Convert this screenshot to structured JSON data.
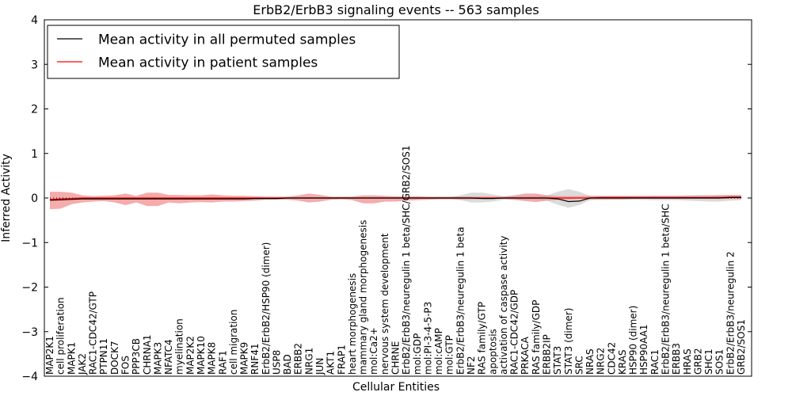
{
  "chart_data": {
    "type": "line",
    "title": "ErbB2/ErbB3 signaling events -- 563 samples",
    "xlabel": "Cellular Entities",
    "ylabel": "Inferred Activity",
    "ylim": [
      -4,
      4
    ],
    "yticks": [
      -4,
      -3,
      -2,
      -1,
      0,
      1,
      2,
      3,
      4
    ],
    "ytick_labels": [
      "−4",
      "−3",
      "−2",
      "−1",
      "0",
      "1",
      "2",
      "3",
      "4"
    ],
    "legend": {
      "placement": "top-left",
      "entries": [
        {
          "label": "Mean activity in all permuted samples",
          "color": "#000000"
        },
        {
          "label": "Mean activity in patient samples",
          "color": "#ff0000"
        }
      ]
    },
    "colors": {
      "permuted": "#000000",
      "patient": "#ff0000",
      "patient_band": "#f08080",
      "permuted_band": "#c8c8c8"
    },
    "categories": [
      "MAP2K1",
      "cell proliferation",
      "MAPK1",
      "JAK2",
      "RAC1-CDC42/GTP",
      "PTPN11",
      "DOCK7",
      "FOS",
      "PPP3CB",
      "CHRNA1",
      "MAPK3",
      "NFATC4",
      "myelination",
      "MAP2K2",
      "MAPK10",
      "MAPK8",
      "RAF1",
      "cell migration",
      "MAPK9",
      "RNF41",
      "ErbB2/ErbB2/HSP90 (dimer)",
      "USP8",
      "BAD",
      "ERBB2",
      "NRG1",
      "JUN",
      "AKT1",
      "FRAP1",
      "heart morphogenesis",
      "mammary gland morphogenesis",
      "mol:Ca2+",
      "nervous system development",
      "CHRNE",
      "ErbB2/ErbB3/neuregulin 1 beta/SHC/GRB2/SOS1",
      "mol:GDP",
      "mol:PI-3-4-5-P3",
      "mol:cAMP",
      "mol:GTP",
      "ErbB2/ErbB3/neuregulin 1 beta",
      "NF2",
      "RAS family/GTP",
      "apoptosis",
      "activation of caspase activity",
      "RAC1-CDC42/GDP",
      "PRKACA",
      "RAS family/GDP",
      "ERBB2IP",
      "STAT3",
      "STAT3 (dimer)",
      "SRC",
      "NRAS",
      "NRG2",
      "CDC42",
      "KRAS",
      "HSP90 (dimer)",
      "HSP90AA1",
      "RAC1",
      "ErbB2/ErbB3/neuregulin 1 beta/SHC",
      "ERBB3",
      "HRAS",
      "GRB2",
      "SHC1",
      "SOS1",
      "ErbB2/ErbB3/neuregulin 2",
      "GRB2/SOS1"
    ],
    "series": [
      {
        "name": "Mean activity in all permuted samples",
        "values": [
          -0.05,
          -0.04,
          -0.03,
          -0.02,
          -0.02,
          -0.02,
          -0.02,
          -0.02,
          -0.02,
          -0.02,
          -0.02,
          -0.02,
          -0.02,
          -0.02,
          -0.02,
          -0.02,
          -0.02,
          -0.02,
          -0.02,
          -0.01,
          -0.01,
          -0.01,
          0.0,
          0.0,
          0.0,
          0.0,
          0.0,
          0.0,
          0.0,
          0.0,
          0.0,
          0.0,
          0.0,
          0.0,
          0.0,
          0.0,
          0.0,
          0.0,
          0.0,
          0.0,
          -0.01,
          -0.01,
          0.0,
          0.0,
          0.0,
          0.0,
          0.0,
          -0.02,
          -0.08,
          -0.07,
          0.0,
          0.0,
          0.0,
          0.0,
          0.0,
          0.0,
          0.0,
          0.0,
          0.0,
          0.0,
          0.0,
          0.0,
          0.0,
          0.01,
          0.01
        ],
        "lower": [
          -0.07,
          -0.06,
          -0.05,
          -0.04,
          -0.04,
          -0.04,
          -0.04,
          -0.04,
          -0.04,
          -0.04,
          -0.04,
          -0.04,
          -0.04,
          -0.04,
          -0.04,
          -0.04,
          -0.04,
          -0.04,
          -0.04,
          -0.03,
          -0.03,
          -0.03,
          -0.02,
          -0.02,
          -0.02,
          -0.02,
          -0.02,
          -0.02,
          -0.02,
          -0.02,
          -0.02,
          -0.02,
          -0.02,
          -0.02,
          -0.02,
          -0.02,
          -0.02,
          -0.02,
          -0.05,
          -0.1,
          -0.1,
          -0.08,
          -0.04,
          -0.04,
          -0.04,
          -0.04,
          -0.06,
          -0.15,
          -0.22,
          -0.16,
          -0.05,
          -0.04,
          -0.04,
          -0.04,
          -0.04,
          -0.04,
          -0.05,
          -0.05,
          -0.05,
          -0.06,
          -0.07,
          -0.08,
          -0.08,
          -0.06,
          -0.05
        ],
        "upper": [
          -0.03,
          -0.02,
          -0.01,
          0.0,
          0.0,
          0.0,
          0.0,
          0.0,
          0.0,
          0.0,
          0.0,
          0.0,
          0.0,
          0.0,
          0.0,
          0.0,
          0.0,
          0.0,
          0.0,
          0.01,
          0.01,
          0.01,
          0.02,
          0.02,
          0.02,
          0.02,
          0.02,
          0.02,
          0.02,
          0.02,
          0.02,
          0.02,
          0.02,
          0.02,
          0.02,
          0.02,
          0.02,
          0.02,
          0.06,
          0.12,
          0.12,
          0.08,
          0.04,
          0.04,
          0.04,
          0.05,
          0.06,
          0.14,
          0.2,
          0.14,
          0.05,
          0.04,
          0.04,
          0.04,
          0.04,
          0.04,
          0.05,
          0.05,
          0.05,
          0.06,
          0.07,
          0.07,
          0.07,
          0.06,
          0.05
        ]
      },
      {
        "name": "Mean activity in patient samples",
        "values": [
          -0.03,
          -0.02,
          -0.01,
          0.0,
          0.0,
          0.0,
          0.0,
          0.0,
          0.0,
          0.0,
          0.0,
          0.0,
          0.0,
          0.0,
          0.0,
          0.0,
          0.0,
          0.0,
          0.0,
          0.0,
          0.0,
          0.0,
          0.0,
          0.0,
          0.0,
          0.0,
          0.0,
          0.0,
          0.0,
          0.0,
          0.0,
          0.0,
          0.0,
          0.0,
          0.0,
          0.0,
          0.0,
          0.0,
          0.0,
          0.0,
          0.0,
          0.0,
          0.0,
          0.0,
          0.0,
          0.0,
          0.0,
          0.0,
          0.0,
          0.0,
          0.0,
          0.01,
          0.01,
          0.01,
          0.01,
          0.01,
          0.01,
          0.01,
          0.01,
          0.01,
          0.01,
          0.01,
          0.01,
          0.02,
          0.02
        ],
        "lower": [
          -0.25,
          -0.24,
          -0.14,
          -0.1,
          -0.08,
          -0.07,
          -0.1,
          -0.16,
          -0.1,
          -0.18,
          -0.18,
          -0.1,
          -0.12,
          -0.1,
          -0.09,
          -0.1,
          -0.08,
          -0.08,
          -0.07,
          -0.06,
          -0.04,
          -0.04,
          -0.04,
          -0.06,
          -0.1,
          -0.08,
          -0.04,
          -0.03,
          -0.05,
          -0.12,
          -0.12,
          -0.08,
          -0.08,
          -0.06,
          -0.05,
          -0.04,
          -0.03,
          -0.03,
          -0.03,
          -0.03,
          -0.02,
          -0.02,
          -0.02,
          -0.04,
          -0.07,
          -0.09,
          -0.06,
          -0.04,
          -0.03,
          -0.02,
          -0.03,
          -0.03,
          -0.03,
          -0.03,
          -0.02,
          -0.02,
          -0.02,
          -0.02,
          -0.02,
          -0.02,
          -0.02,
          -0.02,
          -0.02,
          -0.02,
          -0.02
        ],
        "upper": [
          0.14,
          0.14,
          0.12,
          0.06,
          0.04,
          0.05,
          0.06,
          0.1,
          0.05,
          0.12,
          0.12,
          0.07,
          0.07,
          0.06,
          0.06,
          0.08,
          0.06,
          0.05,
          0.05,
          0.04,
          0.03,
          0.03,
          0.03,
          0.06,
          0.1,
          0.07,
          0.03,
          0.03,
          0.03,
          0.06,
          0.06,
          0.05,
          0.04,
          0.04,
          0.04,
          0.03,
          0.03,
          0.03,
          0.03,
          0.03,
          0.03,
          0.03,
          0.03,
          0.06,
          0.1,
          0.1,
          0.06,
          0.04,
          0.04,
          0.04,
          0.05,
          0.05,
          0.05,
          0.05,
          0.05,
          0.05,
          0.05,
          0.05,
          0.05,
          0.05,
          0.05,
          0.05,
          0.06,
          0.07,
          0.07
        ]
      }
    ],
    "reference_line": 0
  }
}
